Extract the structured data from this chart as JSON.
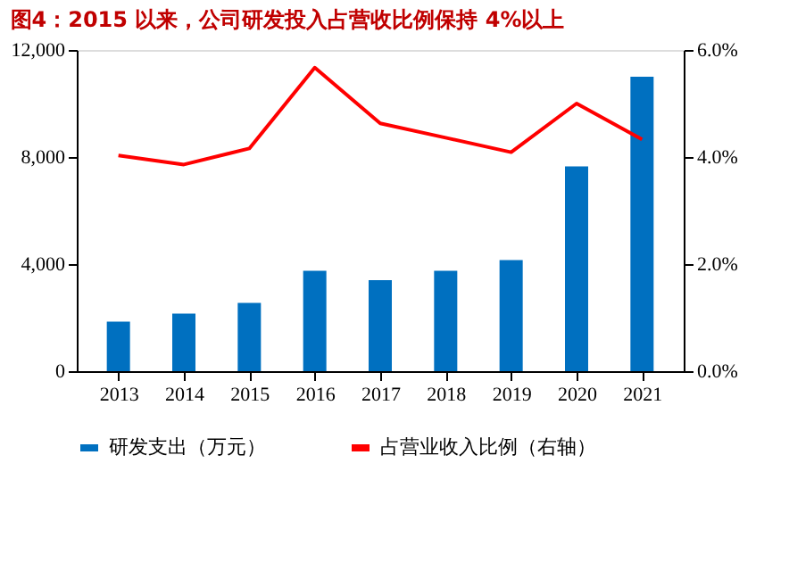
{
  "chart_data": {
    "type": "bar",
    "title": "图4：2015 以来，公司研发投入占营收比例保持 4%以上",
    "categories": [
      "2013",
      "2014",
      "2015",
      "2016",
      "2017",
      "2018",
      "2019",
      "2020",
      "2021"
    ],
    "series": [
      {
        "name": "研发支出（万元）",
        "color": "#0070c0",
        "values": [
          1850,
          2150,
          2550,
          3750,
          3400,
          3750,
          4150,
          7650,
          11000
        ]
      },
      {
        "name": "占营业收入比例（右轴）",
        "color": "#ff0000",
        "type": "line",
        "axis": "y2",
        "values": [
          4.03,
          3.86,
          4.16,
          5.67,
          4.63,
          4.36,
          4.09,
          5.0,
          4.33
        ]
      }
    ],
    "ylim": [
      0,
      12000
    ],
    "yticks": [
      {
        "value": 0,
        "label": "0"
      },
      {
        "value": 4000,
        "label": "4,000"
      },
      {
        "value": 8000,
        "label": "8,000"
      },
      {
        "value": 12000,
        "label": "12,000"
      }
    ],
    "y2lim": [
      0,
      6
    ],
    "y2ticks": [
      {
        "value": 0,
        "label": "0.0%"
      },
      {
        "value": 2,
        "label": "2.0%"
      },
      {
        "value": 4,
        "label": "4.0%"
      },
      {
        "value": 6,
        "label": "6.0%"
      }
    ],
    "legend": "bottom",
    "grid": false
  }
}
